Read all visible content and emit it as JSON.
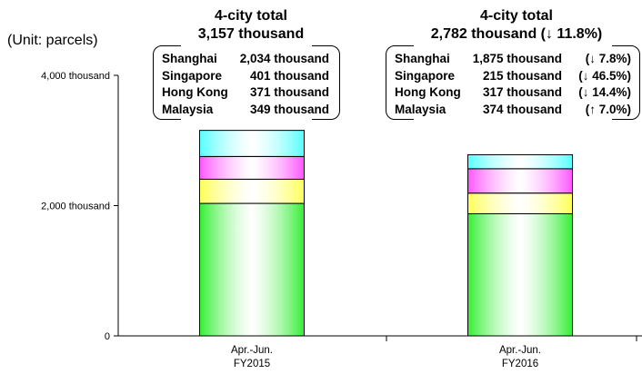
{
  "unit_label": "(Unit: parcels)",
  "colors": {
    "Shanghai": "#33ee33",
    "Hong Kong": "#ffff55",
    "Malaysia": "#ff55ff",
    "Singapore": "#55ffff"
  },
  "chart_data": {
    "type": "bar",
    "stacked": true,
    "categories": [
      "Apr.-Jun.\nFY2015",
      "Apr.-Jun.\nFY2016"
    ],
    "category_lines": [
      [
        "Apr.-Jun.",
        "FY2015"
      ],
      [
        "Apr.-Jun.",
        "FY2016"
      ]
    ],
    "series": [
      {
        "name": "Shanghai",
        "values": [
          2034,
          1875
        ]
      },
      {
        "name": "Hong Kong",
        "values": [
          371,
          317
        ]
      },
      {
        "name": "Malaysia",
        "values": [
          349,
          374
        ]
      },
      {
        "name": "Singapore",
        "values": [
          401,
          215
        ]
      }
    ],
    "stack_order_bottom_to_top": [
      "Shanghai",
      "Hong Kong",
      "Malaysia",
      "Singapore"
    ],
    "ylim": [
      0,
      4000
    ],
    "yticks": [
      {
        "value": 0,
        "label": "0"
      },
      {
        "value": 2000,
        "label": "2,000 thousand"
      },
      {
        "value": 4000,
        "label": "4,000 thousand"
      }
    ],
    "grid": false,
    "legend": "none",
    "totals": [
      {
        "line1": "4-city total",
        "line2": "3,157 thousand"
      },
      {
        "line1": "4-city total",
        "line2": "2,782 thousand (↓ 11.8%)"
      }
    ],
    "breakdown": [
      {
        "rows": [
          {
            "city": "Shanghai",
            "value": "2,034 thousand",
            "change": ""
          },
          {
            "city": "Singapore",
            "value": "401 thousand",
            "change": ""
          },
          {
            "city": "Hong Kong",
            "value": "371 thousand",
            "change": ""
          },
          {
            "city": "Malaysia",
            "value": "349 thousand",
            "change": ""
          }
        ]
      },
      {
        "rows": [
          {
            "city": "Shanghai",
            "value": "1,875 thousand",
            "change": "(↓ 7.8%)"
          },
          {
            "city": "Singapore",
            "value": "215 thousand",
            "change": "(↓ 46.5%)"
          },
          {
            "city": "Hong Kong",
            "value": "317 thousand",
            "change": "(↓ 14.4%)"
          },
          {
            "city": "Malaysia",
            "value": "374 thousand",
            "change": "(↑ 7.0%)"
          }
        ]
      }
    ]
  }
}
